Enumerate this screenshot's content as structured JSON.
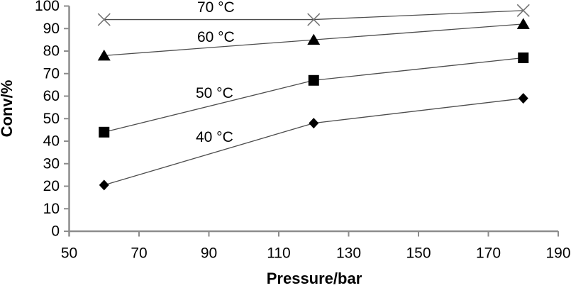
{
  "chart_data": {
    "type": "line",
    "title": "",
    "xlabel": "Pressure/bar",
    "ylabel": "Conv/%",
    "x": [
      60,
      120,
      180
    ],
    "series": [
      {
        "name": "70 °C",
        "marker": "x",
        "values": [
          94,
          94,
          98
        ],
        "label_x": 92,
        "label_y": 99.4
      },
      {
        "name": "60 °C",
        "marker": "triangle",
        "values": [
          78,
          85,
          92
        ],
        "label_x": 92,
        "label_y": 86.2
      },
      {
        "name": "50 °C",
        "marker": "square",
        "values": [
          44,
          67,
          77
        ],
        "label_x": 91.6,
        "label_y": 61.3
      },
      {
        "name": "40 °C",
        "marker": "diamond",
        "values": [
          20.5,
          48,
          59
        ],
        "label_x": 91.6,
        "label_y": 41.8
      }
    ],
    "xlim": [
      50,
      190
    ],
    "ylim": [
      0,
      100
    ],
    "x_ticks": [
      50,
      70,
      90,
      110,
      130,
      150,
      170,
      190
    ],
    "y_ticks": [
      0,
      10,
      20,
      30,
      40,
      50,
      60,
      70,
      80,
      90,
      100
    ],
    "grid": false,
    "legend": "inline-series-labels",
    "background": "#ffffff",
    "colors": {
      "axis": "#8c8c8c",
      "line": "#4d4d4d",
      "marker": "#000000",
      "x_marker": "#757575",
      "text": "#000000"
    }
  }
}
